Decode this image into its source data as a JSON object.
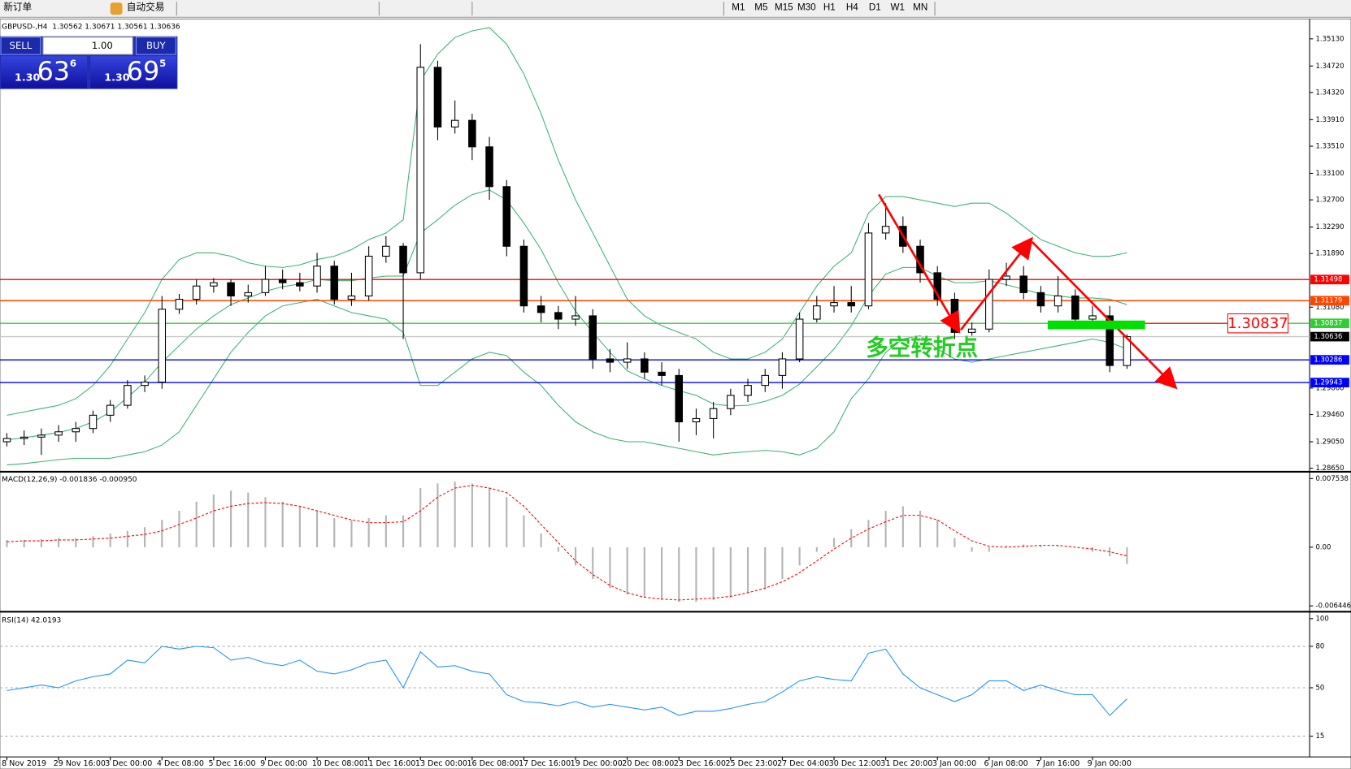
{
  "toolbar": {
    "new_order": "新订单",
    "auto_trading": "自动交易",
    "timeframes": [
      "M1",
      "M5",
      "M15",
      "M30",
      "H1",
      "H4",
      "D1",
      "W1",
      "MN"
    ]
  },
  "trade_panel": {
    "sell": "SELL",
    "buy": "BUY",
    "lots": "1.00",
    "sell_price": {
      "big": "1.30",
      "pips": "63",
      "point": "6"
    },
    "buy_price": {
      "big": "1.30",
      "pips": "69",
      "point": "5"
    }
  },
  "annotations": {
    "label": "多空转折点",
    "price_marker": 1.30837
  },
  "chart_data": [
    {
      "type": "candlestick",
      "title": "GBPUSD-,H4  1.30562 1.30671 1.30561 1.30636",
      "categories": [
        "8 Nov 2019",
        null,
        null,
        "29 Nov 16:00",
        null,
        null,
        "3 Dec 00:00",
        null,
        null,
        "4 Dec 08:00",
        null,
        null,
        "5 Dec 16:00",
        null,
        null,
        "9 Dec 00:00",
        null,
        null,
        "10 Dec 08:00",
        null,
        null,
        "11 Dec 16:00",
        null,
        null,
        "13 Dec 00:00",
        null,
        null,
        "16 Dec 08:00",
        null,
        null,
        "17 Dec 16:00",
        null,
        null,
        "19 Dec 00:00",
        null,
        null,
        "20 Dec 08:00",
        null,
        null,
        "23 Dec 16:00",
        null,
        null,
        "25 Dec 23:00",
        null,
        null,
        "27 Dec 04:00",
        null,
        null,
        "30 Dec 12:00",
        null,
        null,
        "31 Dec 20:00",
        null,
        null,
        "3 Jan 00:00",
        null,
        null,
        "6 Jan 08:00",
        null,
        null,
        "7 Jan 16:00",
        null,
        null,
        "9 Jan 00:00",
        null,
        null
      ],
      "open": [
        1.2905,
        1.291,
        1.2912,
        1.2915,
        1.292,
        1.2925,
        1.2945,
        1.296,
        1.299,
        1.2995,
        1.3105,
        1.312,
        1.314,
        1.3145,
        1.3125,
        1.313,
        1.315,
        1.3145,
        1.314,
        1.317,
        1.312,
        1.3125,
        1.3185,
        1.32,
        1.316,
        1.347,
        1.338,
        1.339,
        1.335,
        1.329,
        1.32,
        1.311,
        1.31,
        1.309,
        1.3095,
        1.303,
        1.3025,
        1.303,
        1.301,
        1.3005,
        1.2935,
        1.294,
        1.2955,
        1.2975,
        1.299,
        1.3005,
        1.303,
        1.309,
        1.311,
        1.3115,
        1.311,
        1.322,
        1.323,
        1.32,
        1.316,
        1.312,
        1.307,
        1.3075,
        1.315,
        1.3155,
        1.313,
        1.311,
        1.3125,
        1.309,
        1.3095,
        1.302
      ],
      "high": [
        1.2918,
        1.2922,
        1.2925,
        1.293,
        1.2935,
        1.2952,
        1.2968,
        1.2998,
        1.3005,
        1.3125,
        1.3128,
        1.315,
        1.3152,
        1.315,
        1.3142,
        1.317,
        1.3165,
        1.316,
        1.319,
        1.3178,
        1.316,
        1.32,
        1.3215,
        1.3205,
        1.3505,
        1.348,
        1.342,
        1.34,
        1.3365,
        1.33,
        1.321,
        1.3125,
        1.311,
        1.3125,
        1.3105,
        1.3045,
        1.3055,
        1.304,
        1.3025,
        1.3015,
        1.2955,
        1.2965,
        1.2985,
        1.3,
        1.3015,
        1.304,
        1.31,
        1.3125,
        1.314,
        1.314,
        1.3235,
        1.3265,
        1.3245,
        1.321,
        1.317,
        1.313,
        1.3085,
        1.3165,
        1.3175,
        1.317,
        1.314,
        1.3155,
        1.3135,
        1.311,
        1.311,
        1.30671
      ],
      "low": [
        1.2898,
        1.29,
        1.2885,
        1.2905,
        1.2905,
        1.2918,
        1.2935,
        1.2955,
        1.298,
        1.2985,
        1.3098,
        1.3112,
        1.313,
        1.311,
        1.3115,
        1.3125,
        1.3135,
        1.3132,
        1.313,
        1.3112,
        1.311,
        1.3118,
        1.3175,
        1.306,
        1.315,
        1.336,
        1.337,
        1.333,
        1.327,
        1.3185,
        1.31,
        1.3085,
        1.3075,
        1.308,
        1.3015,
        1.301,
        1.3015,
        1.3,
        1.299,
        1.2905,
        1.2915,
        1.291,
        1.2945,
        1.2965,
        1.298,
        1.2985,
        1.3025,
        1.3085,
        1.31,
        1.31,
        1.3105,
        1.321,
        1.319,
        1.3145,
        1.311,
        1.306,
        1.3065,
        1.307,
        1.314,
        1.312,
        1.31,
        1.31,
        1.308,
        1.3085,
        1.301,
        1.3015
      ],
      "close": [
        1.291,
        1.2912,
        1.2915,
        1.292,
        1.2925,
        1.2945,
        1.296,
        1.299,
        1.2995,
        1.3105,
        1.312,
        1.314,
        1.3145,
        1.3125,
        1.313,
        1.315,
        1.3145,
        1.314,
        1.317,
        1.312,
        1.3125,
        1.3185,
        1.32,
        1.316,
        1.347,
        1.338,
        1.339,
        1.335,
        1.329,
        1.32,
        1.311,
        1.31,
        1.309,
        1.3095,
        1.303,
        1.3025,
        1.303,
        1.301,
        1.3005,
        1.2935,
        1.294,
        1.2955,
        1.2975,
        1.299,
        1.3005,
        1.303,
        1.309,
        1.311,
        1.3115,
        1.311,
        1.322,
        1.323,
        1.32,
        1.316,
        1.312,
        1.307,
        1.3075,
        1.315,
        1.3155,
        1.313,
        1.311,
        1.3125,
        1.309,
        1.3095,
        1.302,
        1.30636
      ],
      "bands": {
        "color": "#3cb371",
        "upper": [
          1.2945,
          1.295,
          1.2955,
          1.296,
          1.297,
          1.299,
          1.302,
          1.306,
          1.31,
          1.315,
          1.318,
          1.319,
          1.319,
          1.3185,
          1.3175,
          1.317,
          1.3168,
          1.3172,
          1.318,
          1.3185,
          1.3195,
          1.321,
          1.322,
          1.324,
          1.345,
          1.349,
          1.3515,
          1.3525,
          1.353,
          1.3505,
          1.346,
          1.34,
          1.333,
          1.327,
          1.322,
          1.317,
          1.312,
          1.3095,
          1.308,
          1.307,
          1.306,
          1.304,
          1.303,
          1.303,
          1.304,
          1.306,
          1.31,
          1.314,
          1.317,
          1.319,
          1.325,
          1.3275,
          1.3275,
          1.327,
          1.3265,
          1.326,
          1.3265,
          1.3265,
          1.325,
          1.323,
          1.321,
          1.32,
          1.319,
          1.3185,
          1.3185,
          1.319
        ],
        "middle": [
          1.2908,
          1.2911,
          1.2915,
          1.2919,
          1.2925,
          1.2935,
          1.295,
          1.2972,
          1.2995,
          1.3025,
          1.305,
          1.3075,
          1.3095,
          1.3112,
          1.3122,
          1.3132,
          1.3139,
          1.3143,
          1.315,
          1.3148,
          1.3148,
          1.3152,
          1.3155,
          1.3155,
          1.322,
          1.324,
          1.3262,
          1.3278,
          1.3285,
          1.327,
          1.3235,
          1.3195,
          1.3145,
          1.3102,
          1.307,
          1.304,
          1.3012,
          1.3,
          1.299,
          1.2982,
          1.2975,
          1.2962,
          1.2959,
          1.296,
          1.2966,
          1.2975,
          1.2992,
          1.3018,
          1.3045,
          1.308,
          1.3125,
          1.3158,
          1.3168,
          1.3168,
          1.3155,
          1.3145,
          1.3145,
          1.3148,
          1.3142,
          1.3135,
          1.3128,
          1.3125,
          1.3122,
          1.3122,
          1.312,
          1.3112
        ],
        "lower": [
          1.287,
          1.2872,
          1.2875,
          1.2878,
          1.288,
          1.288,
          1.288,
          1.2885,
          1.289,
          1.29,
          1.292,
          1.296,
          1.3,
          1.304,
          1.307,
          1.3095,
          1.311,
          1.3115,
          1.312,
          1.311,
          1.31,
          1.3095,
          1.309,
          1.307,
          1.299,
          1.299,
          1.301,
          1.303,
          1.304,
          1.3035,
          1.301,
          1.299,
          1.296,
          1.2935,
          1.292,
          1.291,
          1.2905,
          1.2905,
          1.29,
          1.2895,
          1.289,
          1.2885,
          1.2888,
          1.289,
          1.2892,
          1.289,
          1.2885,
          1.2895,
          1.292,
          1.297,
          1.3,
          1.304,
          1.306,
          1.3065,
          1.3045,
          1.303,
          1.3025,
          1.303,
          1.3035,
          1.304,
          1.3045,
          1.305,
          1.3055,
          1.306,
          1.3055,
          1.3045
        ]
      },
      "hlines": [
        {
          "value": 1.31498,
          "line_color": "#ff0000",
          "box_color": "#ff0000"
        },
        {
          "value": 1.31179,
          "line_color": "#ff4500",
          "box_color": "#ff4500"
        },
        {
          "value": 1.30837,
          "line_color": "#32cd32",
          "box_color": "#32cd32"
        },
        {
          "value": 1.30636,
          "line_color": "#c8c8c8",
          "box_color": "#000000"
        },
        {
          "value": 1.30286,
          "line_color": "#0000ff",
          "box_color": "#0000ff"
        },
        {
          "value": 1.29943,
          "line_color": "#0000ff",
          "box_color": "#0000ff"
        }
      ],
      "ylim": [
        1.2861,
        1.3539
      ],
      "yticks": [
        {
          "value": 1.3513,
          "label": "1.35130"
        },
        {
          "value": 1.3472,
          "label": "1.34720"
        },
        {
          "value": 1.3432,
          "label": "1.34320"
        },
        {
          "value": 1.3391,
          "label": "1.33910"
        },
        {
          "value": 1.3351,
          "label": "1.33510"
        },
        {
          "value": 1.331,
          "label": "1.33100"
        },
        {
          "value": 1.327,
          "label": "1.32700"
        },
        {
          "value": 1.3229,
          "label": "1.32290"
        },
        {
          "value": 1.3189,
          "label": "1.31890"
        },
        {
          "value": 1.3108,
          "label": "1.31080"
        },
        {
          "value": 1.2986,
          "label": "1.29860"
        },
        {
          "value": 1.2946,
          "label": "1.29460"
        },
        {
          "value": 1.2905,
          "label": "1.29050"
        },
        {
          "value": 1.2865,
          "label": "1.28650"
        }
      ],
      "grid": false
    },
    {
      "type": "macd",
      "title": "MACD(12,26,9) -0.001836 -0.000950",
      "series": [
        {
          "color": "#b4b4b4",
          "values": [
            0.0008,
            0.0008,
            0.0009,
            0.001,
            0.001,
            0.0012,
            0.0015,
            0.0018,
            0.0022,
            0.003,
            0.004,
            0.005,
            0.0058,
            0.0062,
            0.006,
            0.0055,
            0.005,
            0.0045,
            0.004,
            0.0032,
            0.003,
            0.0032,
            0.0035,
            0.0035,
            0.0065,
            0.007,
            0.0072,
            0.007,
            0.0065,
            0.0055,
            0.0035,
            0.0015,
            -0.0005,
            -0.002,
            -0.0035,
            -0.0045,
            -0.0052,
            -0.0055,
            -0.0058,
            -0.006,
            -0.006,
            -0.0058,
            -0.0055,
            -0.005,
            -0.0045,
            -0.0035,
            -0.002,
            -0.0005,
            0.001,
            0.002,
            0.003,
            0.004,
            0.0045,
            0.004,
            0.003,
            0.001,
            -0.0005,
            -0.0005,
            0.0002,
            0.0003,
            0.0002,
            0.0001,
            0,
            -0.0005,
            -0.001,
            -0.001836
          ]
        },
        {
          "color": "#ff0000",
          "values": [
            0.0006,
            0.0007,
            0.0007,
            0.0008,
            0.0008,
            0.0009,
            0.001,
            0.0012,
            0.0014,
            0.0018,
            0.0025,
            0.0032,
            0.004,
            0.0045,
            0.0048,
            0.0049,
            0.0048,
            0.0045,
            0.004,
            0.0035,
            0.003,
            0.0027,
            0.0027,
            0.0028,
            0.004,
            0.0055,
            0.0065,
            0.0068,
            0.0065,
            0.006,
            0.0045,
            0.0025,
            0.0005,
            -0.0015,
            -0.003,
            -0.0042,
            -0.005,
            -0.0055,
            -0.0057,
            -0.0058,
            -0.0057,
            -0.0056,
            -0.0054,
            -0.005,
            -0.0045,
            -0.0038,
            -0.0028,
            -0.0015,
            -0.0002,
            0.001,
            0.002,
            0.0028,
            0.0035,
            0.0035,
            0.003,
            0.0018,
            0.0007,
            0.0001,
            0,
            0.0001,
            0.0002,
            0.0002,
            0,
            -0.0002,
            -0.0005,
            -0.00095
          ]
        }
      ],
      "ylim": [
        -0.0069,
        0.0081
      ],
      "yticks": [
        0.007538,
        {
          "value": 0,
          "label": "0.00"
        },
        -0.006446
      ],
      "grid": false
    },
    {
      "type": "rsi",
      "title": "RSI(14) 42.0193",
      "series": [
        {
          "color": "#1e90ff",
          "values": [
            48,
            50,
            52,
            50,
            55,
            58,
            60,
            70,
            68,
            80,
            78,
            80,
            79,
            70,
            72,
            68,
            66,
            70,
            62,
            60,
            63,
            68,
            70,
            50,
            76,
            65,
            66,
            62,
            60,
            45,
            40,
            39,
            37,
            40,
            36,
            38,
            36,
            34,
            36,
            30,
            33,
            33,
            35,
            38,
            40,
            47,
            55,
            58,
            56,
            55,
            75,
            78,
            60,
            50,
            45,
            40,
            45,
            55,
            55,
            48,
            52,
            48,
            45,
            45,
            30,
            42.0193
          ]
        }
      ],
      "ylim": [
        0,
        100
      ],
      "yticks": [
        100,
        80,
        50,
        15
      ],
      "grid": true
    }
  ]
}
